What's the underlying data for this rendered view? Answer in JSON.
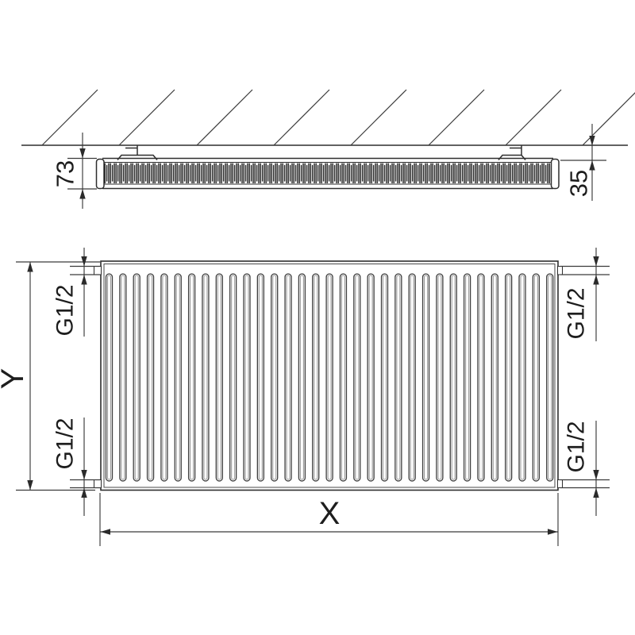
{
  "diagram": {
    "kind": "panel-radiator-dimension-drawing",
    "top_view": {
      "depth_label": "73",
      "wall_distance_label": "35"
    },
    "front_view": {
      "width_label": "X",
      "height_label": "Y",
      "ports": {
        "top_left": "G1/2",
        "top_right": "G1/2",
        "bottom_left": "G1/2",
        "bottom_right": "G1/2"
      }
    },
    "colors": {
      "line": "#2e2e2e",
      "dimension": "#3a3a3a",
      "text": "#1d1d1d",
      "background": "#ffffff",
      "groove_shade": "#9b9b9b"
    }
  }
}
